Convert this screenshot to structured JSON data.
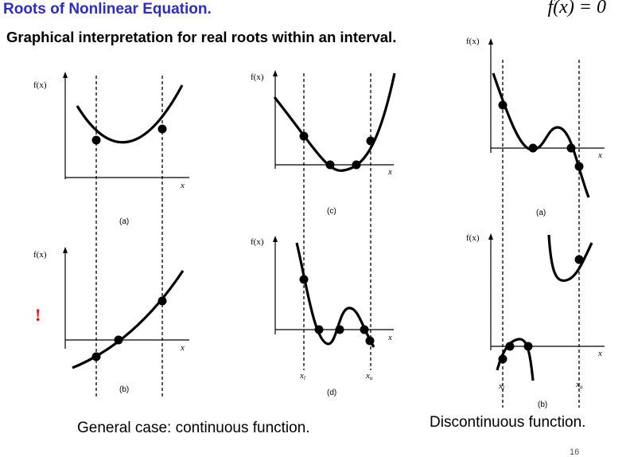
{
  "title": "Roots of Nonlinear Equation.",
  "equation": "f(x) = 0",
  "subtitle": "Graphical interpretation for real roots within an interval.",
  "captions": {
    "continuous": "General case: continuous function.",
    "discontinuous": "Discontinuous function."
  },
  "warning_mark": "!",
  "page_number": "16",
  "graph_labels": {
    "fx": "f(x)",
    "x": "x",
    "xl": "x",
    "xl_sub": "l",
    "xu": "x",
    "xu_sub": "u",
    "a": "(a)",
    "b": "(b)",
    "c": "(c)",
    "d": "(d)",
    "disc_a": "(a)",
    "disc_b": "(b)"
  }
}
